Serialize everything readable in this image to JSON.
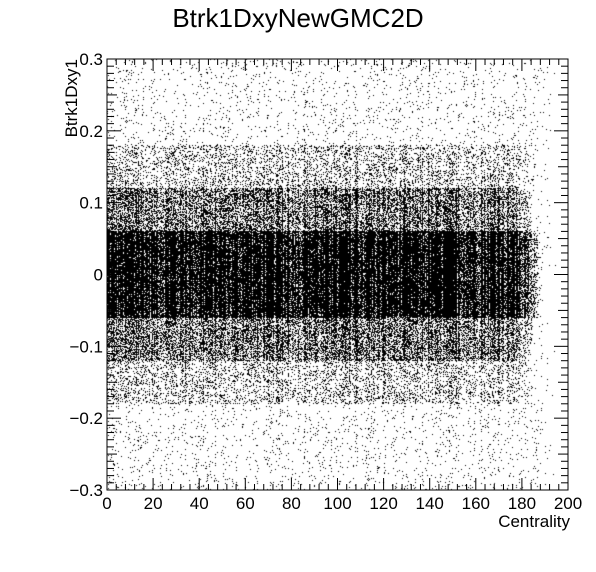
{
  "chart_data": {
    "type": "scatter",
    "subtype": "2d-histogram",
    "title": "Btrk1DxyNewGMC2D",
    "xlabel": "Centrality",
    "ylabel": "Btrk1Dxy1",
    "xlim": [
      0,
      200
    ],
    "ylim": [
      -0.3,
      0.3
    ],
    "xticks": [
      0,
      20,
      40,
      60,
      80,
      100,
      120,
      140,
      160,
      180,
      200
    ],
    "yticks": [
      -0.3,
      -0.2,
      -0.1,
      0,
      0.1,
      0.2,
      0.3
    ],
    "xtick_labels": [
      "0",
      "20",
      "40",
      "60",
      "80",
      "100",
      "120",
      "140",
      "160",
      "180",
      "200"
    ],
    "ytick_labels": [
      "−0.3",
      "−0.2",
      "−0.1",
      "0",
      "0.1",
      "0.2",
      "0.3"
    ],
    "grid": false,
    "legend": "none",
    "color": "#000000",
    "density_bands": [
      {
        "y_range": [
          -0.06,
          0.06
        ],
        "x_range": [
          0,
          188
        ],
        "density": "very high"
      },
      {
        "y_range": [
          -0.12,
          0.12
        ],
        "x_range": [
          0,
          185
        ],
        "density": "high"
      },
      {
        "y_range": [
          -0.18,
          0.18
        ],
        "x_range": [
          0,
          185
        ],
        "density": "medium"
      },
      {
        "y_range": [
          -0.3,
          0.3
        ],
        "x_range": [
          0,
          195
        ],
        "density": "low"
      }
    ]
  }
}
